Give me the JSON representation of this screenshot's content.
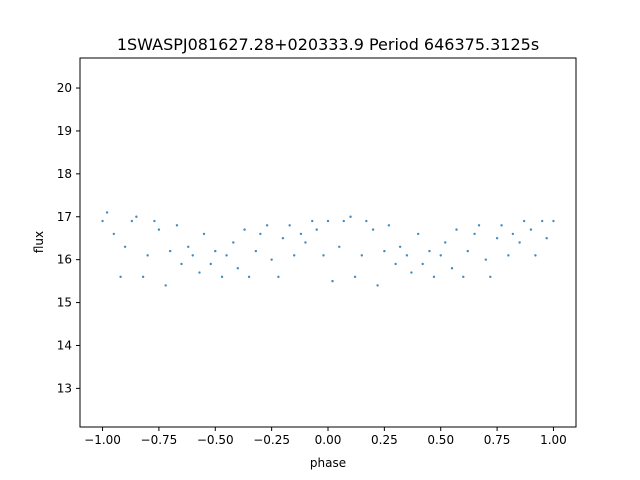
{
  "chart_data": {
    "type": "scatter",
    "title": "1SWASPJ081627.28+020333.9 Period 646375.3125s",
    "xlabel": "phase",
    "ylabel": "flux",
    "xlim": [
      -1.1,
      1.1
    ],
    "ylim": [
      12.1,
      20.7
    ],
    "x_ticks": [
      -1.0,
      -0.75,
      -0.5,
      -0.25,
      0.0,
      0.25,
      0.5,
      0.75,
      1.0
    ],
    "x_tick_labels": [
      "−1.00",
      "−0.75",
      "−0.50",
      "−0.25",
      "0.00",
      "0.25",
      "0.50",
      "0.75",
      "1.00"
    ],
    "y_ticks": [
      13,
      14,
      15,
      16,
      17,
      18,
      19,
      20
    ],
    "y_tick_labels": [
      "13",
      "14",
      "15",
      "16",
      "17",
      "18",
      "19",
      "20"
    ],
    "point_color": "#1f77b4",
    "grid": false,
    "legend": "none",
    "series": [
      {
        "x": [
          -1.0,
          -0.98,
          -0.95,
          -0.92,
          -0.9,
          -0.87,
          -0.85,
          -0.82,
          -0.8,
          -0.77,
          -0.75,
          -0.72,
          -0.7,
          -0.67,
          -0.65,
          -0.62,
          -0.6,
          -0.57,
          -0.55,
          -0.52,
          -0.5,
          -0.47,
          -0.45,
          -0.42,
          -0.4,
          -0.37,
          -0.35,
          -0.32,
          -0.3,
          -0.27,
          -0.25,
          -0.22,
          -0.2,
          -0.17,
          -0.15,
          -0.12,
          -0.1,
          -0.07,
          -0.05,
          -0.02,
          0.0,
          0.02,
          0.05,
          0.07,
          0.1,
          0.12,
          0.15,
          0.17,
          0.2,
          0.22,
          0.25,
          0.27,
          0.3,
          0.32,
          0.35,
          0.37,
          0.4,
          0.42,
          0.45,
          0.47,
          0.5,
          0.52,
          0.55,
          0.57,
          0.6,
          0.62,
          0.65,
          0.67,
          0.7,
          0.72,
          0.75,
          0.77,
          0.8,
          0.82,
          0.85,
          0.87,
          0.9,
          0.92,
          0.95,
          0.97,
          1.0
        ],
        "y": [
          16.9,
          17.1,
          16.6,
          15.6,
          16.3,
          16.9,
          17.0,
          15.6,
          16.1,
          16.9,
          16.7,
          15.4,
          16.2,
          16.8,
          15.9,
          16.3,
          16.1,
          15.7,
          16.6,
          15.9,
          16.2,
          15.6,
          16.1,
          16.4,
          15.8,
          16.7,
          15.6,
          16.2,
          16.6,
          16.8,
          16.0,
          15.6,
          16.5,
          16.8,
          16.1,
          16.6,
          16.4,
          16.9,
          16.7,
          16.1,
          16.9,
          15.5,
          16.3,
          16.9,
          17.0,
          15.6,
          16.1,
          16.9,
          16.7,
          15.4,
          16.2,
          16.8,
          15.9,
          16.3,
          16.1,
          15.7,
          16.6,
          15.9,
          16.2,
          15.6,
          16.1,
          16.4,
          15.8,
          16.7,
          15.6,
          16.2,
          16.6,
          16.8,
          16.0,
          15.6,
          16.5,
          16.8,
          16.1,
          16.6,
          16.4,
          16.9,
          16.7,
          16.1,
          16.9,
          16.5,
          16.9
        ]
      }
    ]
  }
}
